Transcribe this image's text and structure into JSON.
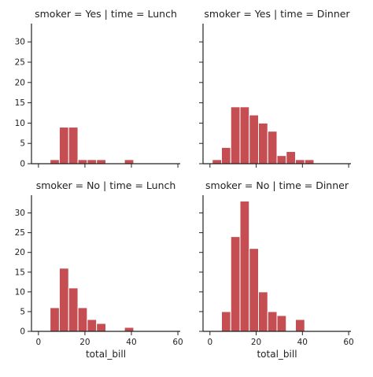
{
  "chart_data": {
    "type": "histogram-facet-grid",
    "bar_color": "#c44e52",
    "bar_edge_color": "#ffffff",
    "x_label": "total_bill",
    "x_ticks": [
      0,
      20,
      40,
      60
    ],
    "x_range": [
      -3.0,
      61.0
    ],
    "y_ticks": [
      0,
      5,
      10,
      15,
      20,
      25,
      30
    ],
    "y_range": [
      0,
      34.5
    ],
    "panels": [
      {
        "title": "smoker = Yes | time = Lunch",
        "bins": [
          {
            "x0": 5,
            "x1": 9,
            "count": 1
          },
          {
            "x0": 9,
            "x1": 13,
            "count": 9
          },
          {
            "x0": 13,
            "x1": 17,
            "count": 9
          },
          {
            "x0": 17,
            "x1": 21,
            "count": 1
          },
          {
            "x0": 21,
            "x1": 25,
            "count": 1
          },
          {
            "x0": 25,
            "x1": 29,
            "count": 1
          },
          {
            "x0": 37,
            "x1": 41,
            "count": 1
          }
        ]
      },
      {
        "title": "smoker = Yes | time = Dinner",
        "bins": [
          {
            "x0": 1,
            "x1": 5,
            "count": 1
          },
          {
            "x0": 5,
            "x1": 9,
            "count": 4
          },
          {
            "x0": 9,
            "x1": 13,
            "count": 14
          },
          {
            "x0": 13,
            "x1": 17,
            "count": 14
          },
          {
            "x0": 17,
            "x1": 21,
            "count": 12
          },
          {
            "x0": 21,
            "x1": 25,
            "count": 10
          },
          {
            "x0": 25,
            "x1": 29,
            "count": 8
          },
          {
            "x0": 29,
            "x1": 33,
            "count": 2
          },
          {
            "x0": 33,
            "x1": 37,
            "count": 3
          },
          {
            "x0": 37,
            "x1": 41,
            "count": 1
          },
          {
            "x0": 41,
            "x1": 45,
            "count": 1
          }
        ]
      },
      {
        "title": "smoker = No | time = Lunch",
        "bins": [
          {
            "x0": 5,
            "x1": 9,
            "count": 6
          },
          {
            "x0": 9,
            "x1": 13,
            "count": 16
          },
          {
            "x0": 13,
            "x1": 17,
            "count": 11
          },
          {
            "x0": 17,
            "x1": 21,
            "count": 6
          },
          {
            "x0": 21,
            "x1": 25,
            "count": 3
          },
          {
            "x0": 25,
            "x1": 29,
            "count": 2
          },
          {
            "x0": 37,
            "x1": 41,
            "count": 1
          }
        ]
      },
      {
        "title": "smoker = No | time = Dinner",
        "bins": [
          {
            "x0": 5,
            "x1": 9,
            "count": 5
          },
          {
            "x0": 9,
            "x1": 13,
            "count": 24
          },
          {
            "x0": 13,
            "x1": 17,
            "count": 33
          },
          {
            "x0": 17,
            "x1": 21,
            "count": 21
          },
          {
            "x0": 21,
            "x1": 25,
            "count": 10
          },
          {
            "x0": 25,
            "x1": 29,
            "count": 5
          },
          {
            "x0": 29,
            "x1": 33,
            "count": 4
          },
          {
            "x0": 37,
            "x1": 41,
            "count": 3
          }
        ]
      }
    ]
  }
}
